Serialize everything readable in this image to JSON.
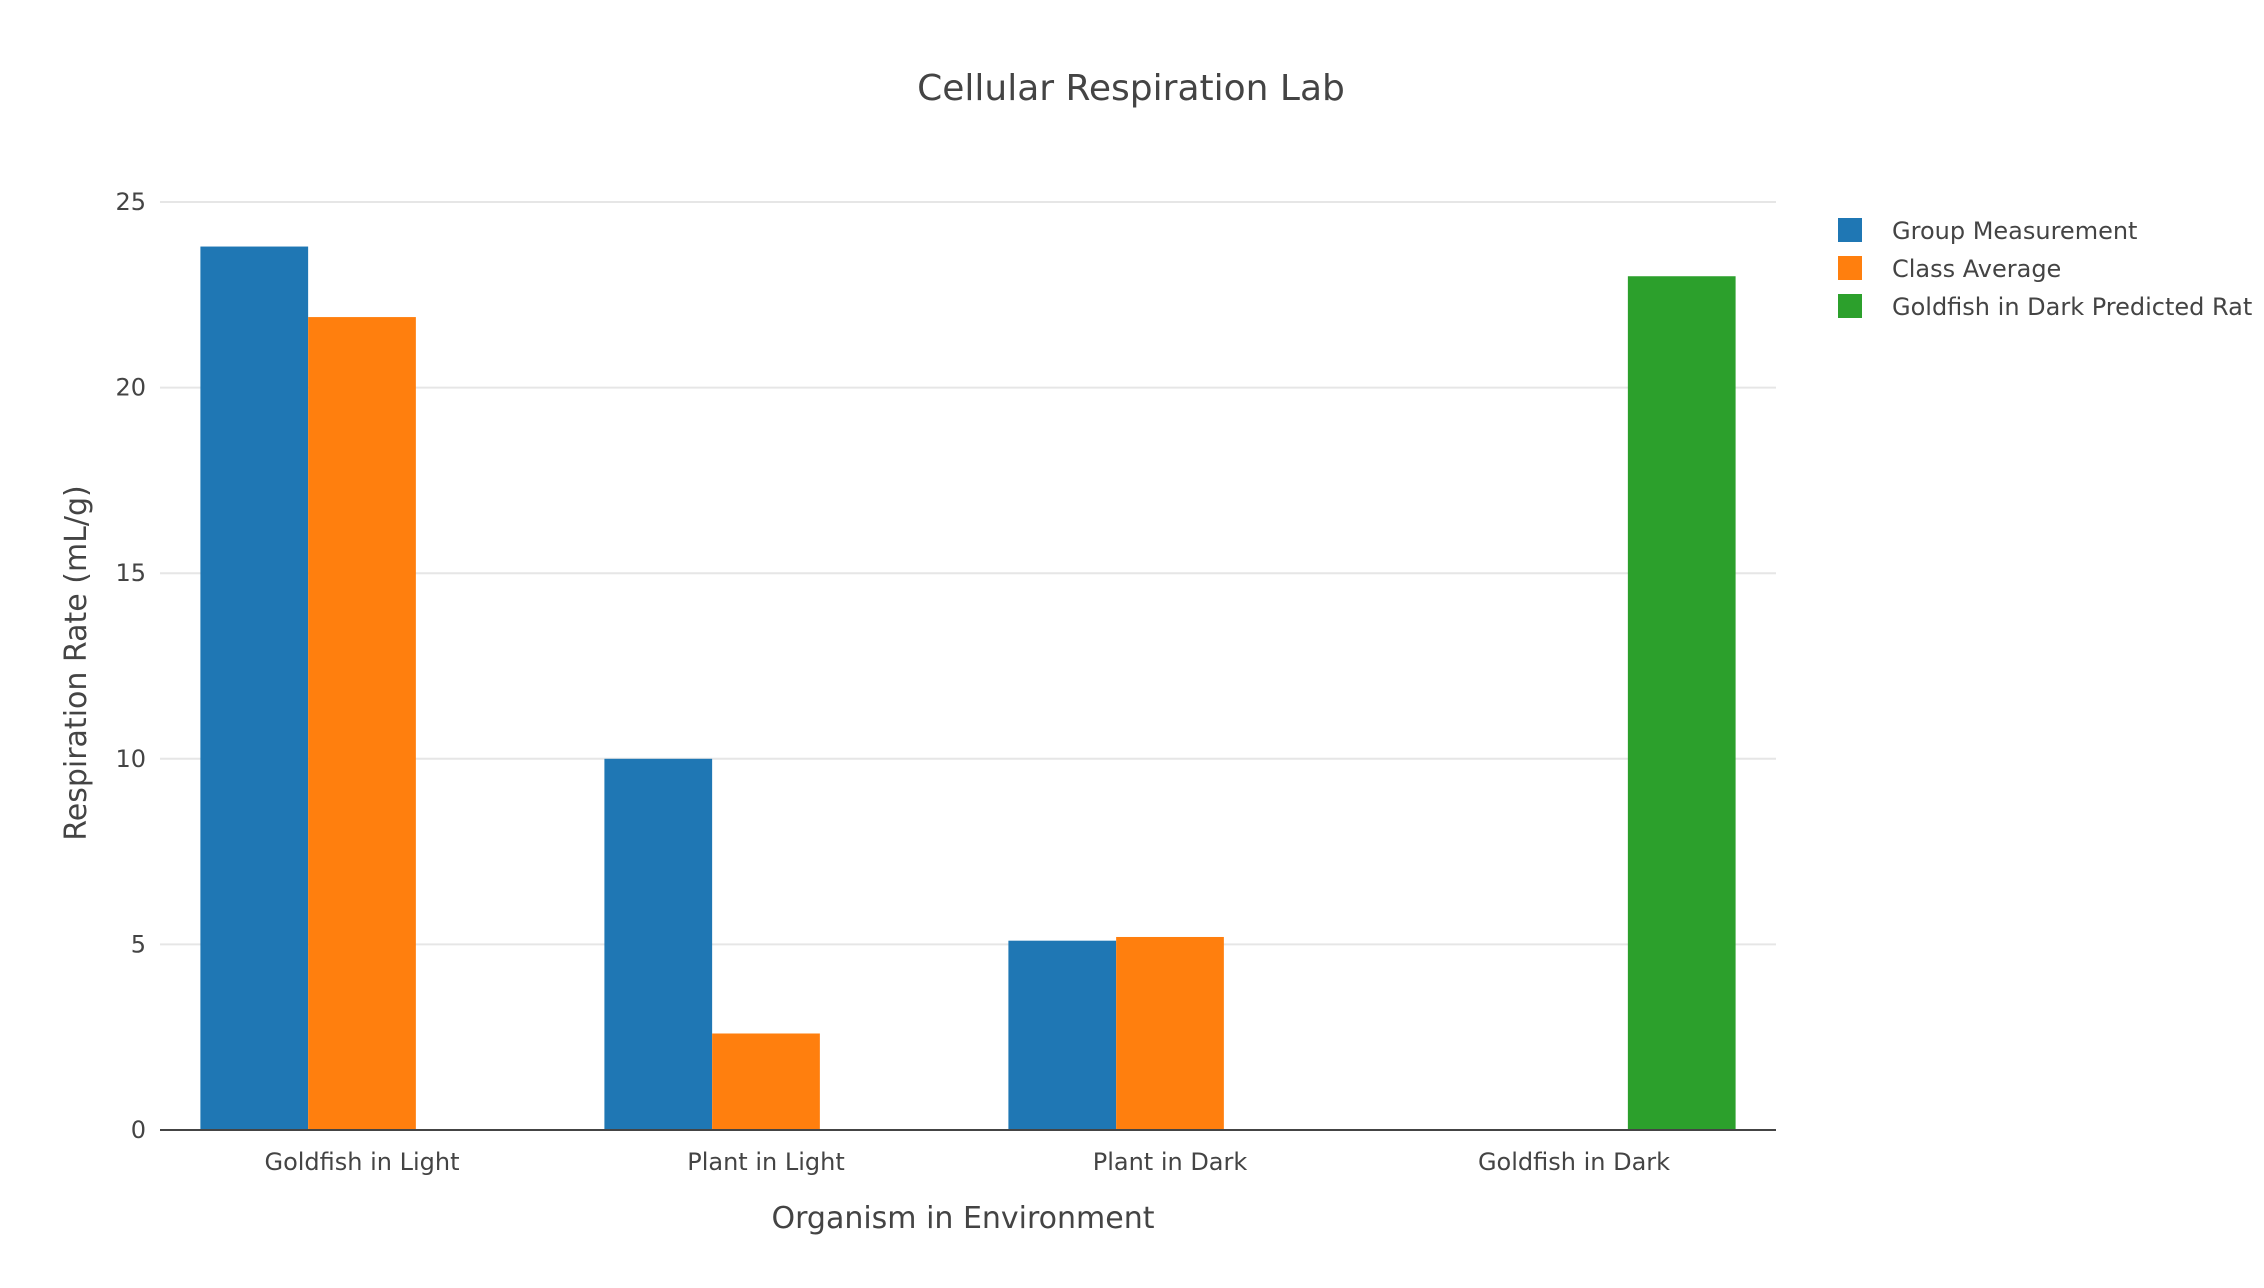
{
  "chart_data": {
    "type": "bar",
    "title": "Cellular Respiration Lab",
    "xlabel": "Organism in Environment",
    "ylabel": "Respiration Rate (mL/g)",
    "categories": [
      "Goldfish in Light",
      "Plant in Light",
      "Plant in Dark",
      "Goldfish in Dark"
    ],
    "ylim": [
      0,
      25
    ],
    "yticks": [
      0,
      5,
      10,
      15,
      20,
      25
    ],
    "grid": true,
    "legend": "right",
    "series": [
      {
        "name": "Group Measurement",
        "color": "#1f77b4",
        "values": [
          23.8,
          10.0,
          5.1,
          null
        ]
      },
      {
        "name": "Class Average",
        "color": "#ff7f0e",
        "values": [
          21.9,
          2.6,
          5.2,
          null
        ]
      },
      {
        "name": "Goldfish in Dark Predicted Rat",
        "color": "#2ca02c",
        "values": [
          null,
          null,
          null,
          23.0
        ]
      }
    ]
  }
}
